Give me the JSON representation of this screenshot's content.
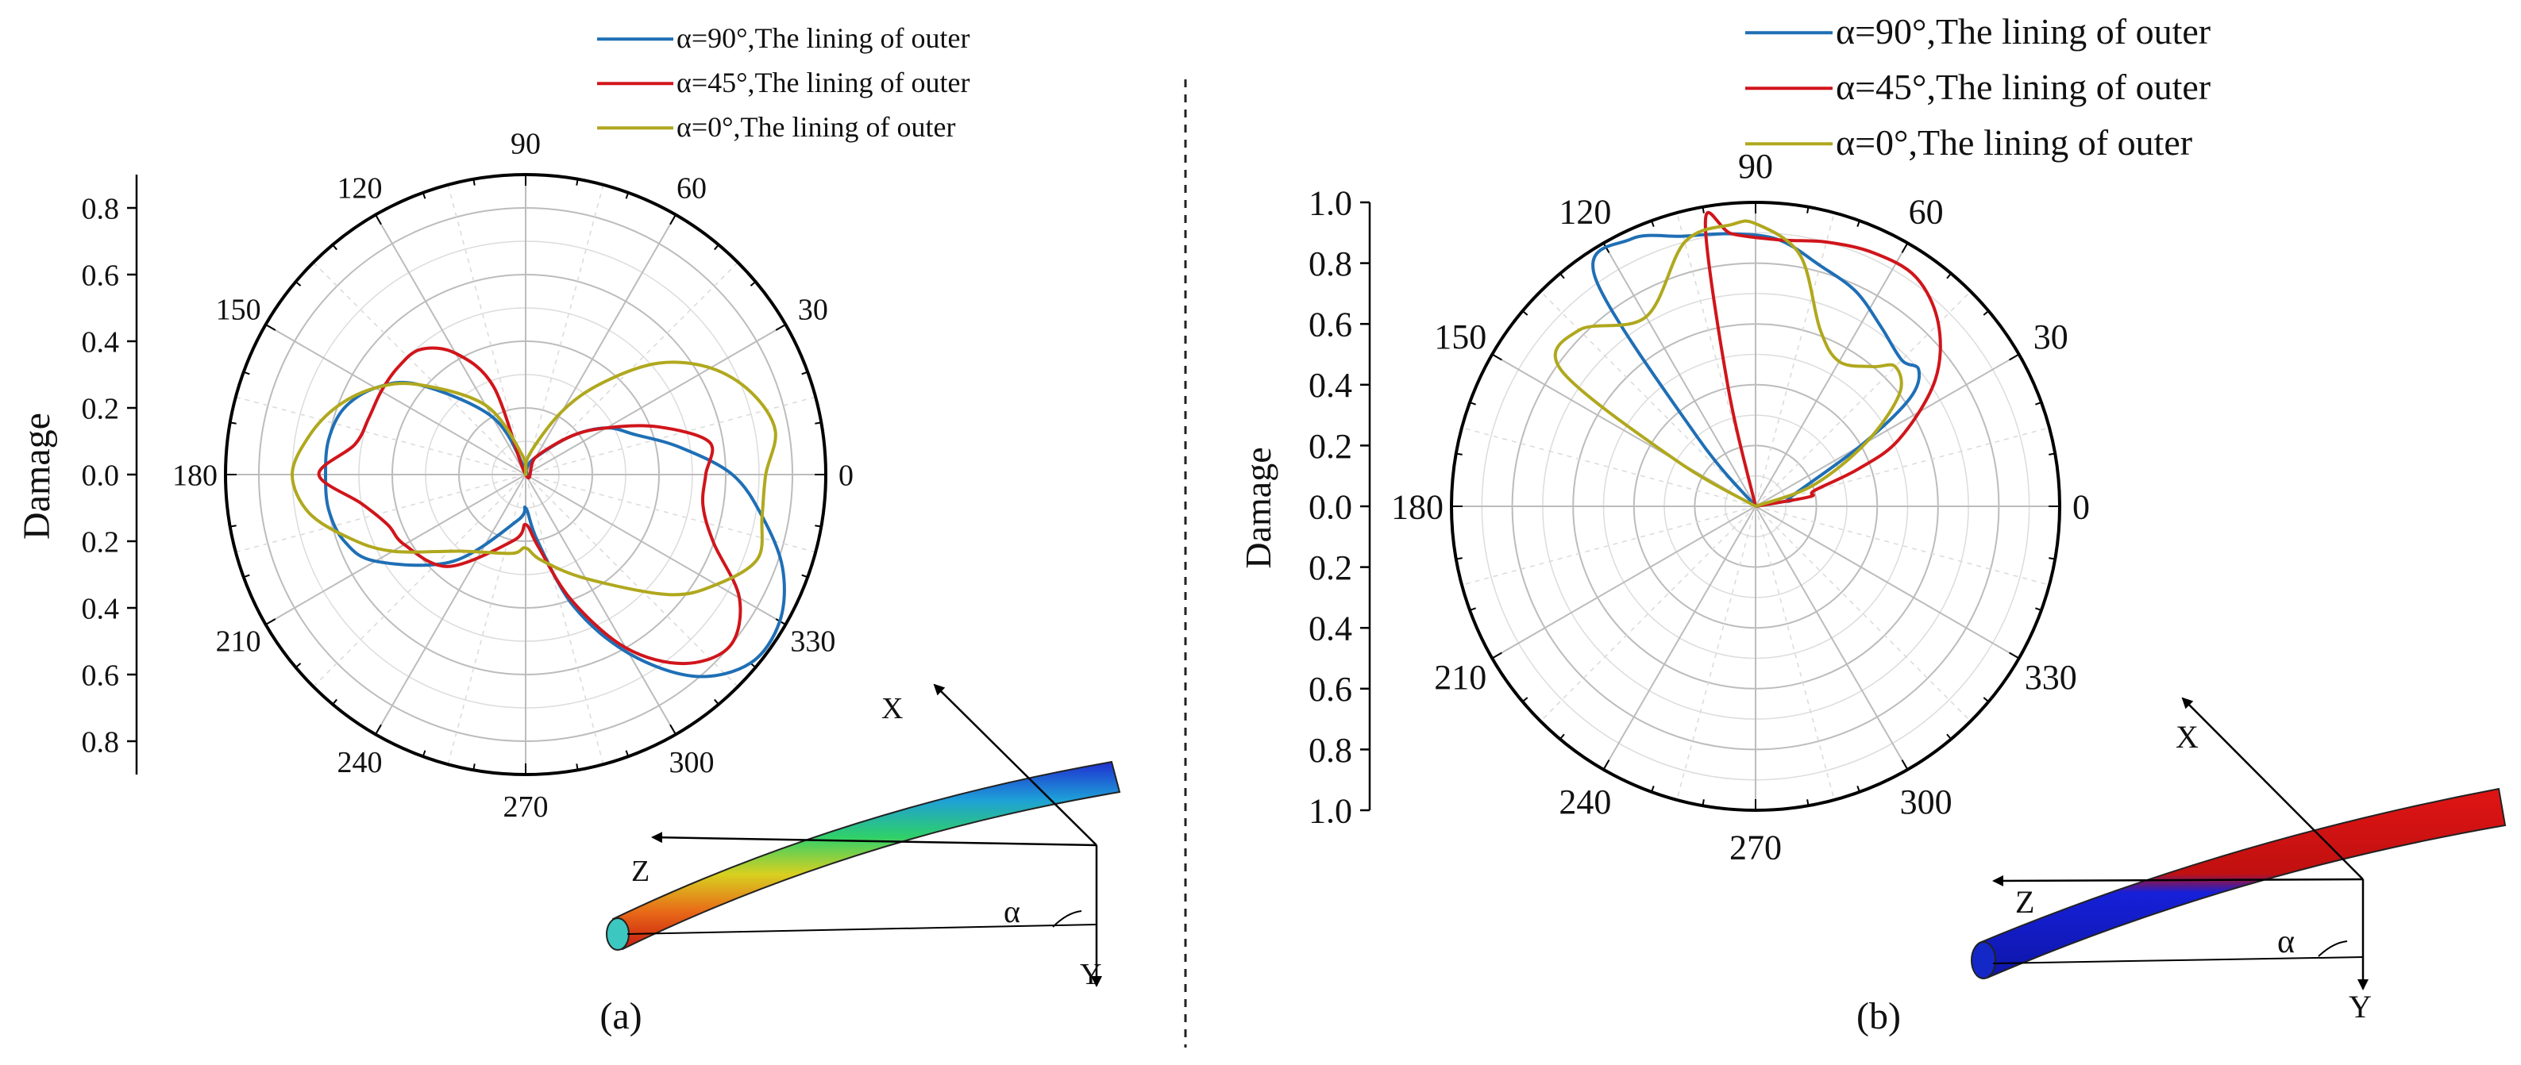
{
  "figure": {
    "divider": "dashed vertical line",
    "colors": {
      "blue": "#1f6fb5",
      "red": "#d0151b",
      "olive": "#b0a81e",
      "axis": "#000000",
      "grid": "#bdbdbd"
    }
  },
  "chart_data": [
    {
      "type": "polar-line",
      "panel_label": "(a)",
      "ylabel": "Damage",
      "r_max": 0.9,
      "r_ticks": [
        0.0,
        0.2,
        0.4,
        0.6,
        0.8
      ],
      "r_tick_labels_upper": [
        "0.0",
        "0.2",
        "0.4",
        "0.6",
        "0.8"
      ],
      "r_tick_labels_lower": [
        "0.2",
        "0.4",
        "0.6",
        "0.8"
      ],
      "angle_ticks": [
        0,
        30,
        60,
        90,
        120,
        150,
        180,
        210,
        240,
        270,
        300,
        330
      ],
      "angle_tick_labels": [
        "0",
        "30",
        "60",
        "90",
        "120",
        "150",
        "180",
        "210",
        "240",
        "270",
        "300",
        "330"
      ],
      "legend": {
        "position": "top-right"
      },
      "series": [
        {
          "name": "α=90°,The lining of outer",
          "color": "#1f6fb5",
          "theta": [
            0,
            10,
            20,
            30,
            40,
            60,
            80,
            90,
            100,
            120,
            140,
            150,
            160,
            170,
            180,
            190,
            200,
            210,
            230,
            260,
            270,
            280,
            290,
            300,
            310,
            320,
            330,
            340,
            350
          ],
          "r": [
            0.62,
            0.47,
            0.35,
            0.28,
            0.18,
            0.06,
            0.02,
            0.0,
            0.02,
            0.2,
            0.42,
            0.52,
            0.58,
            0.6,
            0.6,
            0.6,
            0.58,
            0.52,
            0.34,
            0.14,
            0.1,
            0.2,
            0.42,
            0.62,
            0.79,
            0.88,
            0.88,
            0.82,
            0.72
          ]
        },
        {
          "name": "α=45°,The lining of outer",
          "color": "#d0151b",
          "theta": [
            0,
            10,
            20,
            30,
            40,
            60,
            90,
            110,
            120,
            130,
            140,
            150,
            160,
            170,
            180,
            190,
            200,
            210,
            230,
            260,
            270,
            280,
            290,
            300,
            310,
            320,
            330,
            340,
            350
          ],
          "r": [
            0.54,
            0.56,
            0.42,
            0.28,
            0.18,
            0.06,
            0.0,
            0.28,
            0.42,
            0.49,
            0.5,
            0.5,
            0.5,
            0.52,
            0.62,
            0.5,
            0.44,
            0.42,
            0.36,
            0.2,
            0.15,
            0.22,
            0.4,
            0.6,
            0.74,
            0.8,
            0.74,
            0.6,
            0.54
          ]
        },
        {
          "name": "α=0°,The lining of outer",
          "color": "#b0a81e",
          "theta": [
            0,
            10,
            20,
            30,
            40,
            50,
            60,
            80,
            90,
            100,
            120,
            140,
            150,
            160,
            170,
            180,
            190,
            200,
            210,
            230,
            260,
            270,
            280,
            300,
            320,
            330,
            340,
            350
          ],
          "r": [
            0.72,
            0.76,
            0.72,
            0.64,
            0.52,
            0.36,
            0.22,
            0.06,
            0.0,
            0.06,
            0.24,
            0.42,
            0.52,
            0.6,
            0.66,
            0.7,
            0.66,
            0.56,
            0.46,
            0.3,
            0.24,
            0.22,
            0.26,
            0.36,
            0.56,
            0.66,
            0.74,
            0.72
          ]
        }
      ]
    },
    {
      "type": "polar-line",
      "panel_label": "(b)",
      "ylabel": "Damage",
      "r_max": 1.0,
      "r_ticks": [
        0.0,
        0.2,
        0.4,
        0.6,
        0.8,
        1.0
      ],
      "r_tick_labels_upper": [
        "0.0",
        "0.2",
        "0.4",
        "0.6",
        "0.8",
        "1.0"
      ],
      "r_tick_labels_lower": [
        "0.2",
        "0.4",
        "0.6",
        "0.8",
        "1.0"
      ],
      "angle_ticks": [
        0,
        30,
        60,
        90,
        120,
        150,
        180,
        210,
        240,
        270,
        300,
        330
      ],
      "angle_tick_labels": [
        "0",
        "30",
        "60",
        "90",
        "120",
        "150",
        "180",
        "210",
        "240",
        "270",
        "300",
        "330"
      ],
      "legend": {
        "position": "top-right"
      },
      "series": [
        {
          "name": "α=90°,The lining of outer",
          "color": "#1f6fb5",
          "theta": [
            0,
            10,
            15,
            30,
            35,
            40,
            45,
            55,
            65,
            75,
            85,
            95,
            105,
            115,
            125,
            130,
            130
          ],
          "r": [
            0.0,
            0.12,
            0.12,
            0.4,
            0.62,
            0.7,
            0.68,
            0.72,
            0.78,
            0.82,
            0.88,
            0.9,
            0.92,
            0.97,
            0.92,
            0.3,
            0.0
          ]
        },
        {
          "name": "α=45°,The lining of outer",
          "color": "#d0151b",
          "theta": [
            0,
            10,
            15,
            20,
            25,
            35,
            45,
            55,
            65,
            75,
            85,
            95,
            100,
            103,
            100
          ],
          "r": [
            0.0,
            0.18,
            0.2,
            0.36,
            0.52,
            0.72,
            0.85,
            0.92,
            0.92,
            0.9,
            0.88,
            0.9,
            0.95,
            0.4,
            0.0
          ]
        },
        {
          "name": "α=0°,The lining of outer",
          "color": "#b0a81e",
          "theta": [
            0,
            20,
            30,
            38,
            45,
            50,
            60,
            70,
            80,
            90,
            95,
            105,
            120,
            135,
            145,
            150,
            150
          ],
          "r": [
            0.0,
            0.2,
            0.42,
            0.6,
            0.65,
            0.6,
            0.55,
            0.62,
            0.84,
            0.93,
            0.93,
            0.9,
            0.72,
            0.82,
            0.78,
            0.3,
            0.0
          ]
        }
      ]
    }
  ],
  "insets": [
    {
      "panel": "(a)",
      "axis_labels": [
        "X",
        "Z",
        "Y"
      ],
      "angle_label": "α"
    },
    {
      "panel": "(b)",
      "axis_labels": [
        "X",
        "Z",
        "Y"
      ],
      "angle_label": "α"
    }
  ]
}
